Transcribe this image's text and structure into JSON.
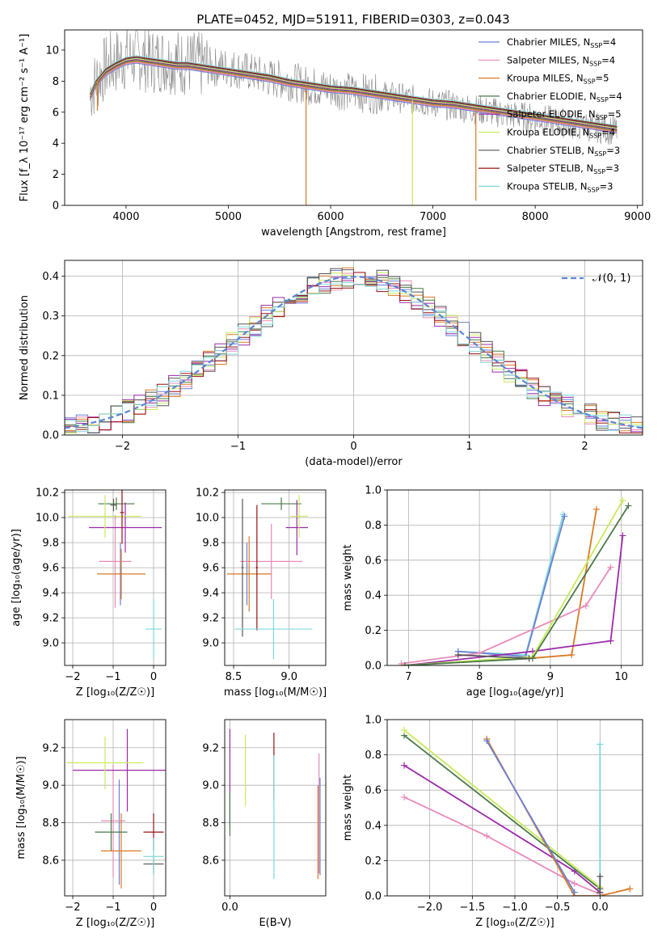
{
  "figure": {
    "title": "PLATE=0452, MJD=51911, FIBERID=0303, z=0.043"
  },
  "models": [
    {
      "name": "Chabrier MILES",
      "nssp": "4",
      "color": "#6a7fd6"
    },
    {
      "name": "Salpeter MILES",
      "nssp": "4",
      "color": "#e98ab9"
    },
    {
      "name": "Kroupa MILES",
      "nssp": "5",
      "color": "#d97a22"
    },
    {
      "name": "Chabrier ELODIE",
      "nssp": "4",
      "color": "#4a7a4a"
    },
    {
      "name": "Salpeter ELODIE",
      "nssp": "5",
      "color": "#9b2aa8"
    },
    {
      "name": "Kroupa ELODIE",
      "nssp": "4",
      "color": "#c9ea5a"
    },
    {
      "name": "Chabrier STELIB",
      "nssp": "3",
      "color": "#555555"
    },
    {
      "name": "Salpeter STELIB",
      "nssp": "3",
      "color": "#9a1010"
    },
    {
      "name": "Kroupa STELIB",
      "nssp": "3",
      "color": "#7fd8d8"
    }
  ],
  "chart_data": [
    {
      "id": "spectrum",
      "type": "line",
      "xlabel": "wavelength [Angstrom, rest frame]",
      "ylabel": "Flux [f_λ 10⁻¹⁷ erg cm⁻² s⁻¹ A⁻¹]",
      "xlim": [
        3400,
        9050
      ],
      "ylim": [
        0,
        11.3
      ],
      "xticks": [
        4000,
        5000,
        6000,
        7000,
        8000,
        9000
      ],
      "yticks": [
        0,
        2,
        4,
        6,
        8,
        10
      ],
      "grid": false,
      "legend": "top-right",
      "data_color": "#888888",
      "data_x": [
        3650,
        3750,
        3850,
        3950,
        4050,
        4150,
        4250,
        4350,
        4450,
        4550,
        4650,
        4750,
        4850,
        5000,
        5200,
        5400,
        5600,
        5800,
        6000,
        6200,
        6400,
        6600,
        6800,
        7000,
        7200,
        7400,
        7600,
        7800,
        8000,
        8200,
        8400,
        8600,
        8800
      ],
      "data_y": [
        7.3,
        8.5,
        9.1,
        9.4,
        9.6,
        9.5,
        9.3,
        9.4,
        9.3,
        9.2,
        9.1,
        9.0,
        8.9,
        8.9,
        8.6,
        8.2,
        8.0,
        7.7,
        7.5,
        7.3,
        7.2,
        7.0,
        6.8,
        6.6,
        6.4,
        6.2,
        6.0,
        5.8,
        5.6,
        5.4,
        5.2,
        5.0,
        4.8
      ],
      "model_x": [
        3650,
        3700,
        3800,
        3900,
        4000,
        4100,
        4200,
        4300,
        4400,
        4500,
        4600,
        4700,
        4800,
        4900,
        5000,
        5200,
        5400,
        5600,
        5800,
        6000,
        6200,
        6400,
        6600,
        6800,
        7000,
        7200,
        7400,
        7600,
        7800,
        8000,
        8200,
        8400,
        8600,
        8800
      ],
      "model_y": [
        7.0,
        7.8,
        8.6,
        9.0,
        9.3,
        9.4,
        9.3,
        9.2,
        9.1,
        9.0,
        9.0,
        8.9,
        8.8,
        8.7,
        8.6,
        8.4,
        8.2,
        7.9,
        7.7,
        7.5,
        7.4,
        7.2,
        7.0,
        6.8,
        6.6,
        6.5,
        6.3,
        6.1,
        5.9,
        5.7,
        5.5,
        5.3,
        5.1,
        4.9
      ],
      "dips": [
        {
          "x": 3720,
          "y": 6.1,
          "model": 2
        },
        {
          "x": 5760,
          "y": 0,
          "model": 2
        },
        {
          "x": 6800,
          "y": 0,
          "model": 5
        },
        {
          "x": 7420,
          "y": 0.3,
          "model": 2
        }
      ]
    },
    {
      "id": "residuals",
      "type": "line",
      "xlabel": "(data-model)/error",
      "ylabel": "Normed distribution",
      "xlim": [
        -2.5,
        2.5
      ],
      "ylim": [
        0,
        0.44
      ],
      "xticks": [
        -2,
        -1,
        0,
        1,
        2
      ],
      "yticks": [
        0.0,
        0.1,
        0.2,
        0.3,
        0.4
      ],
      "grid": true,
      "legend": "top-right",
      "curve_label": "𝒩(0, 1)",
      "curve_color": "#5b86d6",
      "bin_width": 0.1,
      "hist_start": -2.5,
      "hist_end": 2.5
    },
    {
      "id": "age_vs_Z",
      "type": "scatter",
      "xlabel": "Z [log₁₀(Z/Z☉)]",
      "ylabel": "age  [log₁₀(age/yr)]",
      "xlim": [
        -2.2,
        0.3
      ],
      "ylim": [
        8.82,
        10.22
      ],
      "xticks": [
        -2,
        -1,
        0
      ],
      "yticks": [
        9.0,
        9.2,
        9.4,
        9.6,
        9.8,
        10.0,
        10.2
      ],
      "grid": true,
      "points": [
        {
          "m": 0,
          "x": -0.82,
          "y": 9.55,
          "xe": 0.05,
          "ye": 0.25
        },
        {
          "m": 1,
          "x": -0.95,
          "y": 9.65,
          "xe": 0.4,
          "ye": 0.37
        },
        {
          "m": 2,
          "x": -0.8,
          "y": 9.55,
          "xe": 0.6,
          "ye": 0.2
        },
        {
          "m": 3,
          "x": -0.92,
          "y": 10.11,
          "xe": 0.45,
          "ye": 0.05
        },
        {
          "m": 4,
          "x": -0.7,
          "y": 9.92,
          "xe": 0.9,
          "ye": 0.2
        },
        {
          "m": 5,
          "x": -1.2,
          "y": 10.01,
          "xe": 0.9,
          "ye": 0.17
        },
        {
          "m": 6,
          "x": -0.99,
          "y": 10.1,
          "xe": 0.08,
          "ye": 0.05
        },
        {
          "m": 7,
          "x": -0.78,
          "y": 10.04,
          "xe": 0.05,
          "ye": 0.25
        },
        {
          "m": 8,
          "x": 0.0,
          "y": 9.11,
          "xe": 0.2,
          "ye": 0.24
        }
      ]
    },
    {
      "id": "age_vs_mass",
      "type": "scatter",
      "xlabel": "mass [log₁₀(M/M☉)]",
      "ylabel": "",
      "xlim": [
        8.42,
        9.33
      ],
      "ylim": [
        8.82,
        10.22
      ],
      "xticks": [
        8.5,
        9.0
      ],
      "yticks": [
        9.0,
        9.2,
        9.4,
        9.6,
        9.8,
        10.0,
        10.2
      ],
      "grid": true,
      "points": [
        {
          "m": 0,
          "x": 8.62,
          "y": 9.55,
          "xe": 0.01,
          "ye": 0.25
        },
        {
          "m": 1,
          "x": 8.84,
          "y": 9.65,
          "xe": 0.28,
          "ye": 0.3
        },
        {
          "m": 2,
          "x": 8.64,
          "y": 9.55,
          "xe": 0.2,
          "ye": 0.3
        },
        {
          "m": 3,
          "x": 8.93,
          "y": 10.11,
          "xe": 0.18,
          "ye": 0.05
        },
        {
          "m": 4,
          "x": 9.07,
          "y": 9.92,
          "xe": 0.1,
          "ye": 0.22
        },
        {
          "m": 5,
          "x": 9.09,
          "y": 10.01,
          "xe": 0.08,
          "ye": 0.17
        },
        {
          "m": 6,
          "x": 8.58,
          "y": 9.6,
          "xe": 0.01,
          "ye": 0.55
        },
        {
          "m": 7,
          "x": 8.71,
          "y": 9.6,
          "xe": 0.01,
          "ye": 0.5
        },
        {
          "m": 8,
          "x": 8.86,
          "y": 9.11,
          "xe": 0.35,
          "ye": 0.24
        }
      ]
    },
    {
      "id": "weight_vs_age",
      "type": "line",
      "xlabel": "age  [log₁₀(age/yr)]",
      "ylabel": "mass weight",
      "xlim": [
        6.7,
        10.3
      ],
      "ylim": [
        0,
        1.0
      ],
      "xticks": [
        7,
        8,
        9,
        10
      ],
      "yticks": [
        0.0,
        0.2,
        0.4,
        0.6,
        0.8,
        1.0
      ],
      "grid": true,
      "series": [
        {
          "m": 8,
          "x": [
            7.7,
            8.65,
            9.18
          ],
          "y": [
            0.08,
            0.06,
            0.86
          ]
        },
        {
          "m": 0,
          "x": [
            7.7,
            8.65,
            9.2
          ],
          "y": [
            0.08,
            0.05,
            0.85
          ]
        },
        {
          "m": 2,
          "x": [
            6.9,
            8.7,
            9.3,
            9.65
          ],
          "y": [
            0.0,
            0.04,
            0.06,
            0.89
          ]
        },
        {
          "m": 1,
          "x": [
            6.9,
            8.0,
            9.5,
            9.85
          ],
          "y": [
            0.01,
            0.07,
            0.34,
            0.56
          ]
        },
        {
          "m": 4,
          "x": [
            6.95,
            8.75,
            9.85,
            10.02
          ],
          "y": [
            0.0,
            0.08,
            0.14,
            0.74
          ]
        },
        {
          "m": 5,
          "x": [
            6.95,
            8.75,
            10.02
          ],
          "y": [
            0.0,
            0.05,
            0.94
          ]
        },
        {
          "m": 3,
          "x": [
            6.95,
            8.75,
            10.1
          ],
          "y": [
            0.0,
            0.04,
            0.91
          ]
        },
        {
          "m": 6,
          "x": [
            7.7,
            8.7
          ],
          "y": [
            0.06,
            0.04
          ]
        }
      ]
    },
    {
      "id": "mass_vs_Z",
      "type": "scatter",
      "xlabel": "Z [log₁₀(Z/Z☉)]",
      "ylabel": "mass [log₁₀(M/M☉)]",
      "xlim": [
        -2.2,
        0.3
      ],
      "ylim": [
        8.41,
        9.35
      ],
      "xticks": [
        -2,
        -1,
        0
      ],
      "yticks": [
        8.6,
        8.8,
        9.0,
        9.2
      ],
      "grid": true,
      "points": [
        {
          "m": 0,
          "x": -0.85,
          "y": 8.75,
          "xe": 0.03,
          "ye": 0.28
        },
        {
          "m": 1,
          "x": -1.0,
          "y": 8.81,
          "xe": 0.3,
          "ye": 0.3
        },
        {
          "m": 2,
          "x": -0.8,
          "y": 8.65,
          "xe": 0.5,
          "ye": 0.2
        },
        {
          "m": 3,
          "x": -1.05,
          "y": 8.75,
          "xe": 0.4,
          "ye": 0.1
        },
        {
          "m": 4,
          "x": -0.65,
          "y": 9.08,
          "xe": 1.35,
          "ye": 0.22
        },
        {
          "m": 5,
          "x": -1.2,
          "y": 9.12,
          "xe": 0.95,
          "ye": 0.14
        },
        {
          "m": 6,
          "x": 0.0,
          "y": 8.58,
          "xe": 0.25,
          "ye": 0.05
        },
        {
          "m": 7,
          "x": 0.0,
          "y": 8.75,
          "xe": 0.25,
          "ye": 0.1
        },
        {
          "m": 8,
          "x": 0.0,
          "y": 8.62,
          "xe": 0.25,
          "ye": 0.1
        }
      ]
    },
    {
      "id": "mass_vs_ebv",
      "type": "scatter",
      "xlabel": "E(B-V)",
      "ylabel": "",
      "xlim": [
        -0.01,
        0.185
      ],
      "ylim": [
        8.41,
        9.35
      ],
      "xticks": [
        0.0
      ],
      "xtick_labels": [
        "0.0"
      ],
      "yticks": [
        8.6,
        8.8,
        9.0,
        9.2
      ],
      "grid": true,
      "points": [
        {
          "m": 4,
          "x": 0.0,
          "y": 9.04,
          "xe": 0,
          "ye": 0.26
        },
        {
          "m": 3,
          "x": 0.0,
          "y": 8.85,
          "xe": 0,
          "ye": 0.12
        },
        {
          "m": 5,
          "x": 0.03,
          "y": 9.08,
          "xe": 0,
          "ye": 0.19
        },
        {
          "m": 7,
          "x": 0.085,
          "y": 9.1,
          "xe": 0,
          "ye": 0.18
        },
        {
          "m": 8,
          "x": 0.085,
          "y": 8.83,
          "xe": 0,
          "ye": 0.33
        },
        {
          "m": 1,
          "x": 0.172,
          "y": 8.85,
          "xe": 0,
          "ye": 0.32
        },
        {
          "m": 2,
          "x": 0.17,
          "y": 8.75,
          "xe": 0,
          "ye": 0.25
        },
        {
          "m": 0,
          "x": 0.174,
          "y": 8.78,
          "xe": 0,
          "ye": 0.26
        }
      ]
    },
    {
      "id": "weight_vs_Z",
      "type": "line",
      "xlabel": "Z [log₁₀(Z/Z☉)]",
      "ylabel": "mass weight",
      "xlim": [
        -2.5,
        0.5
      ],
      "ylim": [
        0,
        1.0
      ],
      "xticks": [
        -2.0,
        -1.5,
        -1.0,
        -0.5,
        0.0
      ],
      "yticks": [
        0.0,
        0.2,
        0.4,
        0.6,
        0.8,
        1.0
      ],
      "grid": true,
      "series": [
        {
          "m": 1,
          "x": [
            -2.3,
            -1.33,
            -0.3,
            0.0
          ],
          "y": [
            0.56,
            0.34,
            0.07,
            0.01
          ]
        },
        {
          "m": 4,
          "x": [
            -2.3,
            -0.3,
            0.0
          ],
          "y": [
            0.74,
            0.14,
            0.02
          ]
        },
        {
          "m": 3,
          "x": [
            -2.3,
            0.0
          ],
          "y": [
            0.91,
            0.04
          ]
        },
        {
          "m": 5,
          "x": [
            -2.3,
            0.0
          ],
          "y": [
            0.94,
            0.05
          ]
        },
        {
          "m": 2,
          "x": [
            -1.33,
            -0.3,
            0.0,
            0.35
          ],
          "y": [
            0.89,
            0.0,
            0.0,
            0.04
          ]
        },
        {
          "m": 0,
          "x": [
            -1.33,
            -0.3
          ],
          "y": [
            0.88,
            0.02
          ]
        },
        {
          "m": 8,
          "x": [
            0.0,
            0.0
          ],
          "y": [
            0.0,
            0.86
          ]
        },
        {
          "m": 6,
          "x": [
            0.0,
            0.0
          ],
          "y": [
            0.02,
            0.11
          ]
        }
      ]
    }
  ]
}
